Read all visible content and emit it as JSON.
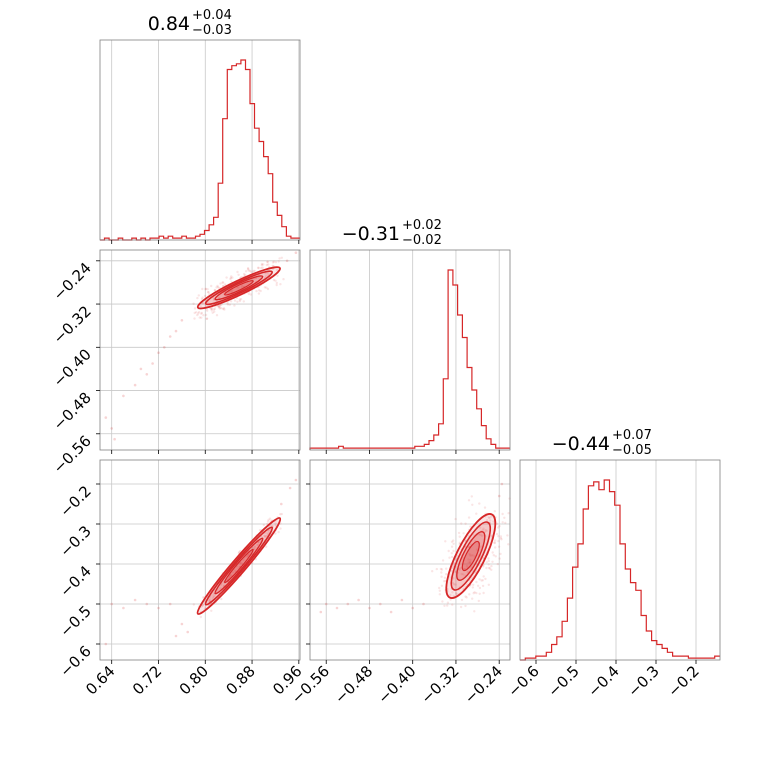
{
  "colors": {
    "accent": "#d62728",
    "grid": "#c8c8c8",
    "frame": "#808080",
    "text": "#000000"
  },
  "chart_data": {
    "type": "corner",
    "grid": true,
    "parameters": [
      {
        "id": "p1",
        "title": {
          "value": "0.84",
          "plus": "+0.04",
          "minus": "−0.03"
        },
        "range": [
          0.62,
          0.962
        ],
        "ticks": [
          0.64,
          0.72,
          0.8,
          0.88,
          0.96
        ],
        "tick_labels": [
          "0.64",
          "0.72",
          "0.80",
          "0.88",
          "0.96"
        ]
      },
      {
        "id": "p2",
        "title": {
          "value": "−0.31",
          "plus": "+0.02",
          "minus": "−0.02"
        },
        "range": [
          -0.59,
          -0.22
        ],
        "ticks": [
          -0.56,
          -0.48,
          -0.4,
          -0.32,
          -0.24
        ],
        "tick_labels": [
          "−0.56",
          "−0.48",
          "−0.40",
          "−0.32",
          "−0.24"
        ]
      },
      {
        "id": "p3",
        "title": {
          "value": "−0.44",
          "plus": "+0.07",
          "minus": "−0.05"
        },
        "range": [
          -0.64,
          -0.14
        ],
        "ticks": [
          -0.6,
          -0.5,
          -0.4,
          -0.3,
          -0.2
        ],
        "tick_labels": [
          "−0.6",
          "−0.5",
          "−0.4",
          "−0.3",
          "−0.2"
        ]
      }
    ],
    "histograms": [
      {
        "param": 0,
        "x_start": 0.62,
        "x_end": 0.962,
        "counts": [
          0,
          1,
          0,
          0,
          1,
          0,
          0,
          1,
          0,
          1,
          0,
          1,
          1,
          2,
          1,
          2,
          1,
          1,
          2,
          1,
          1,
          2,
          3,
          5,
          8,
          12,
          30,
          64,
          90,
          92,
          93,
          95,
          90,
          72,
          59,
          52,
          44,
          35,
          20,
          13,
          7,
          2,
          1,
          1
        ]
      },
      {
        "param": 1,
        "x_start": -0.59,
        "x_end": -0.22,
        "counts": [
          1,
          1,
          1,
          1,
          1,
          1,
          2,
          1,
          1,
          1,
          1,
          1,
          1,
          1,
          1,
          1,
          1,
          1,
          1,
          1,
          1,
          1,
          2,
          2,
          3,
          5,
          8,
          14,
          38,
          96,
          88,
          72,
          60,
          44,
          32,
          22,
          13,
          6,
          3,
          1,
          1,
          1
        ]
      },
      {
        "param": 2,
        "x_start": -0.64,
        "x_end": -0.14,
        "counts": [
          0,
          1,
          1,
          2,
          2,
          4,
          8,
          12,
          20,
          32,
          48,
          60,
          78,
          90,
          92,
          88,
          93,
          87,
          80,
          60,
          47,
          40,
          36,
          23,
          15,
          10,
          8,
          6,
          4,
          2,
          2,
          2,
          1,
          1,
          1,
          1,
          1,
          2
        ]
      }
    ],
    "pairs": [
      {
        "x_param": 0,
        "y_param": 1,
        "ridge": [
          0.79,
          -0.325,
          0.925,
          -0.255
        ],
        "width": 0.008,
        "outliers": [
          [
            0.66,
            -0.49
          ],
          [
            0.68,
            -0.47
          ],
          [
            0.7,
            -0.45
          ],
          [
            0.71,
            -0.43
          ],
          [
            0.72,
            -0.41
          ],
          [
            0.73,
            -0.4
          ],
          [
            0.74,
            -0.38
          ],
          [
            0.75,
            -0.37
          ],
          [
            0.63,
            -0.53
          ],
          [
            0.64,
            -0.55
          ],
          [
            0.69,
            -0.44
          ],
          [
            0.76,
            -0.35
          ],
          [
            0.955,
            -0.225
          ],
          [
            0.94,
            -0.24
          ],
          [
            0.645,
            -0.57
          ]
        ]
      },
      {
        "x_param": 0,
        "y_param": 2,
        "ridge": [
          0.79,
          -0.52,
          0.925,
          -0.29
        ],
        "width": 0.006,
        "outliers": [
          [
            0.64,
            -0.5
          ],
          [
            0.66,
            -0.51
          ],
          [
            0.68,
            -0.49
          ],
          [
            0.7,
            -0.5
          ],
          [
            0.72,
            -0.51
          ],
          [
            0.74,
            -0.5
          ],
          [
            0.76,
            -0.55
          ],
          [
            0.77,
            -0.57
          ],
          [
            0.75,
            -0.58
          ],
          [
            0.63,
            -0.6
          ],
          [
            0.955,
            -0.19
          ],
          [
            0.945,
            -0.21
          ],
          [
            0.93,
            -0.25
          ]
        ]
      },
      {
        "x_param": 1,
        "y_param": 2,
        "ridge": [
          -0.33,
          -0.48,
          -0.255,
          -0.28
        ],
        "width": 0.018,
        "outliers": [
          [
            -0.56,
            -0.5
          ],
          [
            -0.54,
            -0.51
          ],
          [
            -0.52,
            -0.5
          ],
          [
            -0.5,
            -0.49
          ],
          [
            -0.48,
            -0.51
          ],
          [
            -0.46,
            -0.5
          ],
          [
            -0.44,
            -0.52
          ],
          [
            -0.42,
            -0.49
          ],
          [
            -0.4,
            -0.51
          ],
          [
            -0.38,
            -0.5
          ],
          [
            -0.235,
            -0.2
          ],
          [
            -0.24,
            -0.23
          ],
          [
            -0.57,
            -0.52
          ]
        ]
      }
    ]
  }
}
